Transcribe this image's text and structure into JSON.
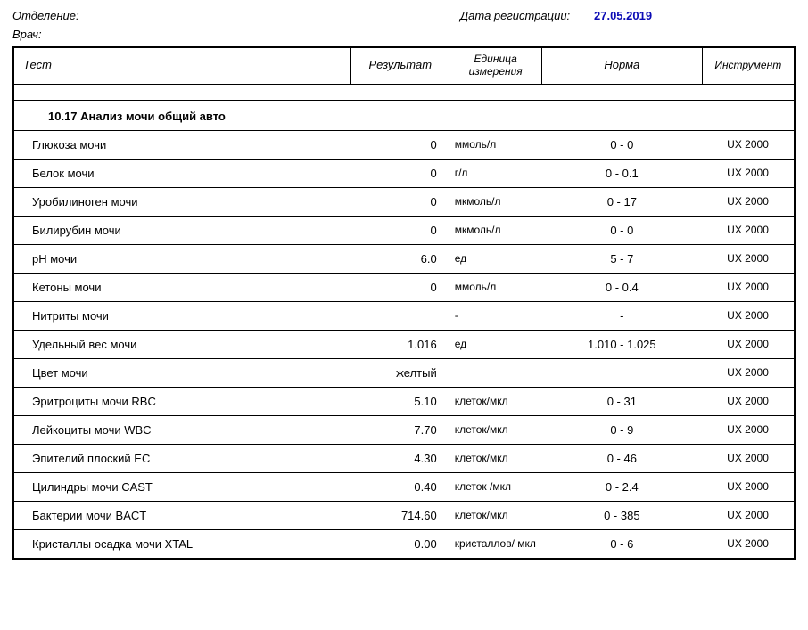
{
  "meta": {
    "department_label": "Отделение:",
    "doctor_label": "Врач:",
    "reg_date_label": "Дата регистрации:",
    "reg_date_value": "27.05.2019"
  },
  "columns": {
    "test": "Тест",
    "result": "Результат",
    "unit": "Единица измерения",
    "norm": "Норма",
    "instrument": "Инструмент"
  },
  "section_title": "10.17 Анализ мочи общий авто",
  "rows": [
    {
      "test": "Глюкоза мочи",
      "result": "0",
      "unit": "ммоль/л",
      "norm": "0 - 0",
      "instrument": "UX 2000"
    },
    {
      "test": "Белок мочи",
      "result": "0",
      "unit": "г/л",
      "norm": "0 - 0.1",
      "instrument": "UX 2000"
    },
    {
      "test": "Уробилиноген мочи",
      "result": "0",
      "unit": "мкмоль/л",
      "norm": "0 - 17",
      "instrument": "UX 2000"
    },
    {
      "test": "Билирубин мочи",
      "result": "0",
      "unit": "мкмоль/л",
      "norm": "0 - 0",
      "instrument": "UX 2000"
    },
    {
      "test": "pH мочи",
      "result": "6.0",
      "unit": "ед",
      "norm": "5 - 7",
      "instrument": "UX 2000"
    },
    {
      "test": "Кетоны мочи",
      "result": "0",
      "unit": "ммоль/л",
      "norm": "0 - 0.4",
      "instrument": "UX 2000"
    },
    {
      "test": "Нитриты мочи",
      "result": "",
      "unit": "-",
      "norm": "-",
      "instrument": "UX 2000"
    },
    {
      "test": "Удельный вес мочи",
      "result": "1.016",
      "unit": "ед",
      "norm": "1.010 - 1.025",
      "instrument": "UX 2000"
    },
    {
      "test": "Цвет мочи",
      "result": "желтый",
      "unit": "",
      "norm": "",
      "instrument": "UX 2000"
    },
    {
      "test": "Эритроциты мочи RBC",
      "result": "5.10",
      "unit": "клеток/мкл",
      "norm": "0 - 31",
      "instrument": "UX 2000"
    },
    {
      "test": "Лейкоциты мочи WBC",
      "result": "7.70",
      "unit": "клеток/мкл",
      "norm": "0 - 9",
      "instrument": "UX 2000"
    },
    {
      "test": "Эпителий плоский EC",
      "result": "4.30",
      "unit": "клеток/мкл",
      "norm": "0 - 46",
      "instrument": "UX 2000"
    },
    {
      "test": "Цилиндры мочи CAST",
      "result": "0.40",
      "unit": "клеток /мкл",
      "norm": "0 - 2.4",
      "instrument": "UX 2000"
    },
    {
      "test": "Бактерии мочи BACT",
      "result": "714.60",
      "unit": "клеток/мкл",
      "norm": "0 - 385",
      "instrument": "UX 2000"
    },
    {
      "test": "Кристаллы осадка мочи XTAL",
      "result": "0.00",
      "unit": "кристаллов/ мкл",
      "norm": "0 - 6",
      "instrument": "UX 2000"
    }
  ]
}
